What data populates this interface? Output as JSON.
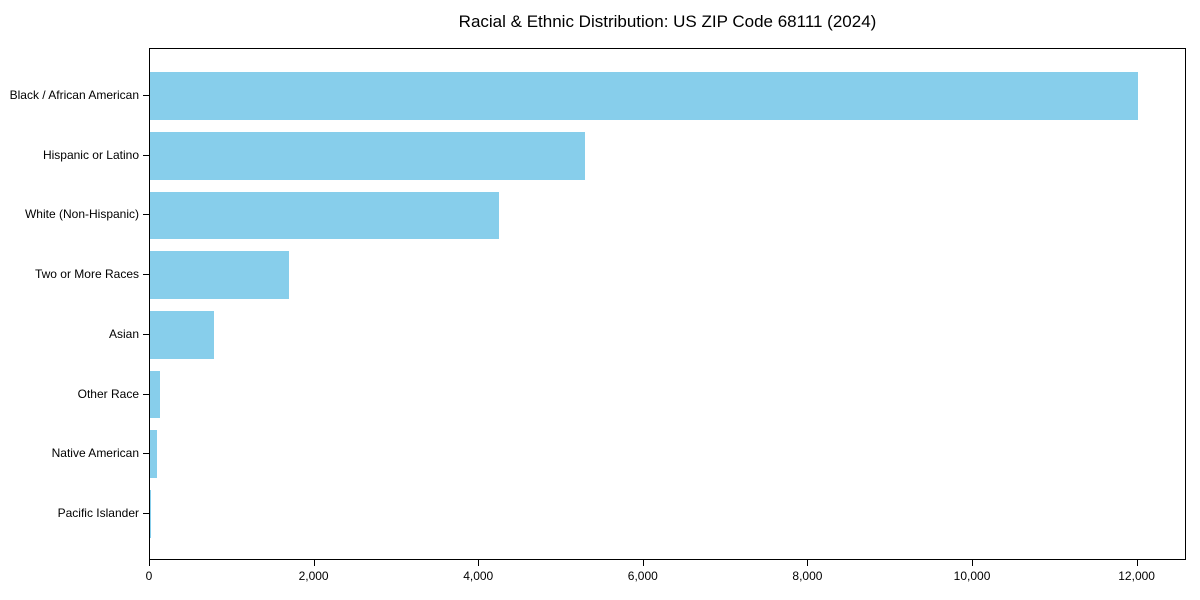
{
  "chart_data": {
    "type": "bar",
    "orientation": "horizontal",
    "title": "Racial & Ethnic Distribution: US ZIP Code 68111 (2024)",
    "categories": [
      "Black / African American",
      "Hispanic or Latino",
      "White (Non-Hispanic)",
      "Two or More Races",
      "Asian",
      "Other Race",
      "Native American",
      "Pacific Islander"
    ],
    "values": [
      12000,
      5280,
      4240,
      1690,
      780,
      120,
      80,
      10
    ],
    "xlabel": "",
    "ylabel": "",
    "xlim": [
      0,
      12600
    ],
    "x_ticks": [
      0,
      2000,
      4000,
      6000,
      8000,
      10000,
      12000
    ],
    "x_tick_labels": [
      "0",
      "2,000",
      "4,000",
      "6,000",
      "8,000",
      "10,000",
      "12,000"
    ],
    "grid": false,
    "legend": null,
    "bar_color": "#87CEEB",
    "axis_color": "#000000",
    "background_color": "#FFFFFF"
  }
}
